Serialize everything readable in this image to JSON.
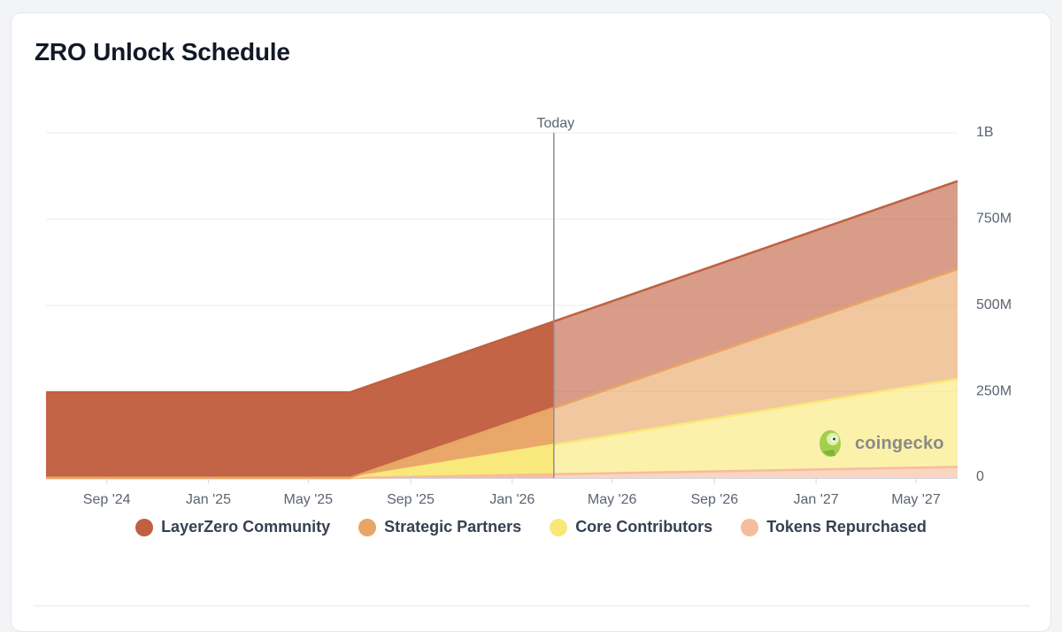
{
  "title": "ZRO Unlock Schedule",
  "today_label": "Today",
  "watermark": "coingecko",
  "chart_data": {
    "type": "area",
    "stacked": true,
    "title": "ZRO Unlock Schedule",
    "xlabel": "",
    "ylabel": "",
    "x_range": [
      "2024-06-20",
      "2027-06-20"
    ],
    "ylim": [
      0,
      1000000000
    ],
    "y_ticks": [
      {
        "value": 0,
        "label": "0"
      },
      {
        "value": 250000000,
        "label": "250M"
      },
      {
        "value": 500000000,
        "label": "500M"
      },
      {
        "value": 750000000,
        "label": "750M"
      },
      {
        "value": 1000000000,
        "label": "1B"
      }
    ],
    "x_ticks": [
      {
        "date": "2024-09-01",
        "label": "Sep '24"
      },
      {
        "date": "2025-01-01",
        "label": "Jan '25"
      },
      {
        "date": "2025-05-01",
        "label": "May '25"
      },
      {
        "date": "2025-09-01",
        "label": "Sep '25"
      },
      {
        "date": "2026-01-01",
        "label": "Jan '26"
      },
      {
        "date": "2026-05-01",
        "label": "May '26"
      },
      {
        "date": "2026-09-01",
        "label": "Sep '26"
      },
      {
        "date": "2027-01-01",
        "label": "Jan '27"
      },
      {
        "date": "2027-05-01",
        "label": "May '27"
      }
    ],
    "today_date": "2026-02-20",
    "grid": true,
    "legend_position": "bottom",
    "series": [
      {
        "name": "Tokens Repurchased",
        "color": "#f7bc9b",
        "points": [
          [
            "2024-06-20",
            0
          ],
          [
            "2025-06-20",
            0
          ],
          [
            "2027-06-20",
            32000000
          ]
        ]
      },
      {
        "name": "Core Contributors",
        "color": "#f9e878",
        "points": [
          [
            "2024-06-20",
            0
          ],
          [
            "2025-06-20",
            0
          ],
          [
            "2027-06-20",
            255000000
          ]
        ]
      },
      {
        "name": "Strategic Partners",
        "color": "#e8a564",
        "points": [
          [
            "2024-06-20",
            0
          ],
          [
            "2025-06-20",
            0
          ],
          [
            "2027-06-20",
            318000000
          ]
        ]
      },
      {
        "name": "LayerZero Community",
        "color": "#c0603f",
        "points": [
          [
            "2024-06-20",
            248000000
          ],
          [
            "2025-06-20",
            248000000
          ],
          [
            "2027-06-20",
            255000000
          ]
        ]
      }
    ]
  },
  "legend": [
    {
      "label": "LayerZero Community",
      "color": "#c0603f"
    },
    {
      "label": "Strategic Partners",
      "color": "#e8a564"
    },
    {
      "label": "Core Contributors",
      "color": "#f9e878"
    },
    {
      "label": "Tokens Repurchased",
      "color": "#f7bc9b"
    }
  ]
}
